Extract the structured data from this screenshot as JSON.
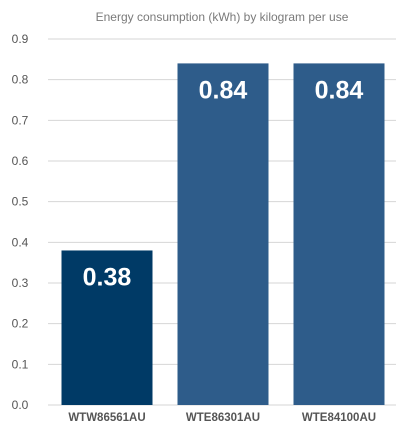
{
  "chart_data": {
    "type": "bar",
    "title": "Energy consumption (kWh) by kilogram per use",
    "xlabel": "",
    "ylabel": "",
    "categories": [
      "WTW86561AU",
      "WTE86301AU",
      "WTE84100AU"
    ],
    "values": [
      0.38,
      0.84,
      0.84
    ],
    "value_labels": [
      "0.38",
      "0.84",
      "0.84"
    ],
    "ylim": [
      0,
      0.9
    ],
    "yticks": [
      "0.0",
      "0.1",
      "0.2",
      "0.3",
      "0.4",
      "0.5",
      "0.6",
      "0.7",
      "0.8",
      "0.9"
    ],
    "grid": true,
    "legend": "none",
    "colors": [
      "#003a66",
      "#2e5c8a",
      "#2e5c8a"
    ]
  }
}
